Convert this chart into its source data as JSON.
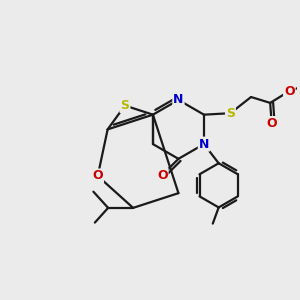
{
  "bg_color": "#ebebeb",
  "bond_color": "#1a1a1a",
  "bond_lw": 1.6,
  "atom_S_color": "#b8b800",
  "atom_N_color": "#0000cc",
  "atom_O_color": "#cc0000",
  "figsize": [
    3.0,
    3.0
  ],
  "dpi": 100,
  "xlim": [
    0,
    10
  ],
  "ylim": [
    0,
    10
  ]
}
